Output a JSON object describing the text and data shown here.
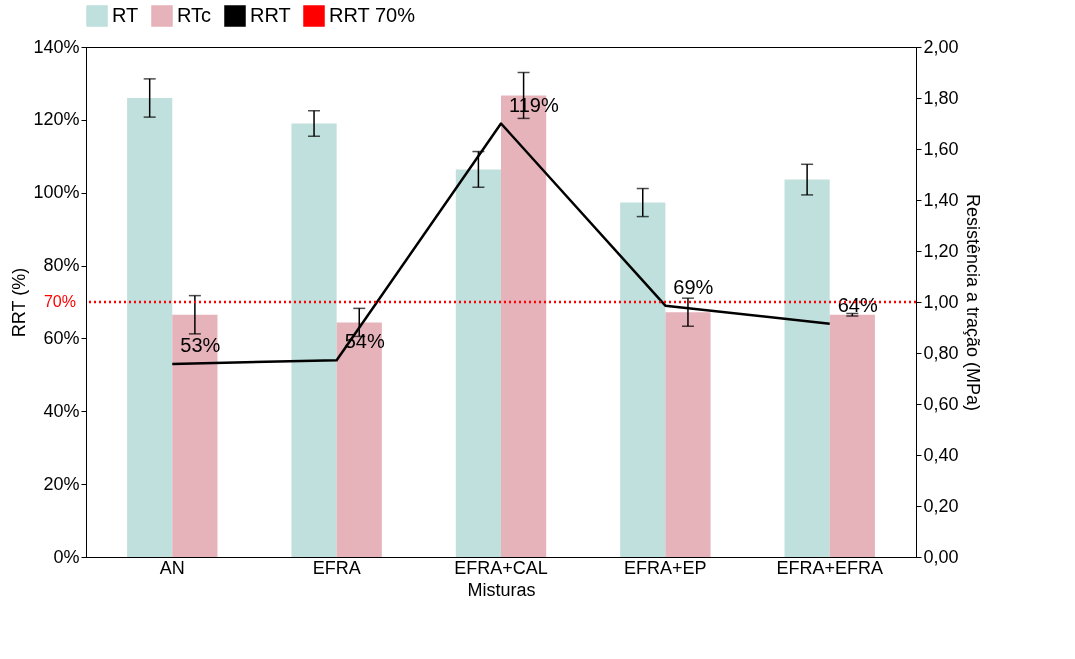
{
  "chart_data": {
    "type": "bar",
    "xlabel": "Misturas",
    "ylabel": "RRT (%)",
    "y2label": "Resistência a tração (MPa)",
    "categories": [
      "AN",
      "EFRA",
      "EFRA+CAL",
      "EFRA+EP",
      "EFRA+EFRA"
    ],
    "series": [
      {
        "name": "RT",
        "axis": "y2",
        "color": "#bfe0dc",
        "values": [
          1.8,
          1.7,
          1.52,
          1.39,
          1.48
        ],
        "errors": [
          0.075,
          0.05,
          0.07,
          0.055,
          0.06
        ]
      },
      {
        "name": "RTc",
        "axis": "y2",
        "color": "#e6b3bb",
        "values": [
          0.95,
          0.92,
          1.81,
          0.96,
          0.95
        ],
        "errors": [
          0.075,
          0.055,
          0.09,
          0.055,
          0.005
        ]
      },
      {
        "name": "RRT",
        "type": "line",
        "axis": "y",
        "color": "#000000",
        "values": [
          53,
          54,
          119,
          69,
          64
        ],
        "value_labels": [
          "53%",
          "54%",
          "119%",
          "69%",
          "64%"
        ]
      }
    ],
    "ref_lines": [
      {
        "axis": "y",
        "value": 70,
        "label": "RRT 70%",
        "color": "#ff0000",
        "line_style": "dotted"
      }
    ],
    "annotations": [
      "70%"
    ],
    "ylim": [
      0,
      140
    ],
    "yticks": [
      {
        "value": 0,
        "label": "0%"
      },
      {
        "value": 20,
        "label": "20%"
      },
      {
        "value": 40,
        "label": "40%"
      },
      {
        "value": 60,
        "label": "60%"
      },
      {
        "value": 80,
        "label": "80%"
      },
      {
        "value": 100,
        "label": "100%"
      },
      {
        "value": 120,
        "label": "120%"
      },
      {
        "value": 140,
        "label": "140%"
      }
    ],
    "y2lim": [
      0,
      2.0
    ],
    "y2ticks": [
      {
        "value": 0,
        "label": "0,00"
      },
      {
        "value": 0.2,
        "label": "0,20"
      },
      {
        "value": 0.4,
        "label": "0,40"
      },
      {
        "value": 0.6,
        "label": "0,60"
      },
      {
        "value": 0.8,
        "label": "0,80"
      },
      {
        "value": 1.0,
        "label": "1,00"
      },
      {
        "value": 1.2,
        "label": "1,20"
      },
      {
        "value": 1.4,
        "label": "1,40"
      },
      {
        "value": 1.6,
        "label": "1,60"
      },
      {
        "value": 1.8,
        "label": "1,80"
      },
      {
        "value": 2.0,
        "label": "2,00"
      }
    ],
    "legend": "top",
    "grid": false
  }
}
